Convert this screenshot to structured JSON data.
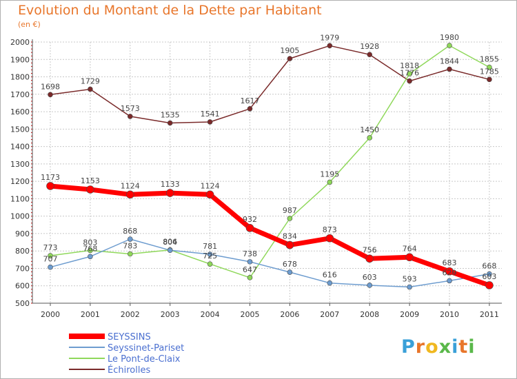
{
  "title": "Evolution du Montant de la Dette par Habitant",
  "unit": "(en €)",
  "logo": "Proxiti",
  "colors": {
    "title": "#e8762b",
    "grid": "#c8c8c8",
    "axis": "#555555",
    "tick_red": "#cc0000"
  },
  "chart_data": {
    "type": "line",
    "title": "Evolution du Montant de la Dette par Habitant",
    "ylabel": "(en €)",
    "xlabel": "",
    "x": [
      "2000",
      "2001",
      "2002",
      "2003",
      "2004",
      "2005",
      "2006",
      "2007",
      "2008",
      "2009",
      "2010",
      "2011"
    ],
    "yticks": [
      "500",
      "600",
      "700",
      "800",
      "900",
      "1000",
      "1100",
      "1200",
      "1300",
      "1400",
      "1500",
      "1600",
      "1700",
      "1800",
      "1900",
      "2000"
    ],
    "ylim": [
      500,
      2000
    ],
    "grid": true,
    "legend_position": "bottom-left",
    "series": [
      {
        "name": "SEYSSINS",
        "color": "#ff0000",
        "legend_text_color": "#4a6fd0",
        "width": 7,
        "marker_r": 5.5,
        "values": [
          1173,
          1153,
          1124,
          1133,
          1124,
          932,
          834,
          873,
          756,
          764,
          683,
          603
        ],
        "labels": [
          "1173",
          "1153",
          "1124",
          "1133",
          "1124",
          "932",
          "834",
          "873",
          "756",
          "764",
          "683",
          "603"
        ]
      },
      {
        "name": "Seyssinet-Pariset",
        "color": "#6d9ccf",
        "legend_text_color": "#4a6fd0",
        "width": 1.5,
        "marker_r": 3.5,
        "values": [
          707,
          768,
          868,
          804,
          781,
          738,
          678,
          616,
          603,
          593,
          629,
          668
        ],
        "labels": [
          "707",
          "768",
          "868",
          "804",
          "781",
          "738",
          "678",
          "616",
          "603",
          "593",
          "629",
          "668"
        ]
      },
      {
        "name": "Le Pont-de-Claix",
        "color": "#8fd85a",
        "legend_text_color": "#4a6fd0",
        "width": 1.5,
        "marker_r": 3.5,
        "values": [
          773,
          803,
          783,
          806,
          725,
          647,
          987,
          1195,
          1450,
          1818,
          1980,
          1855
        ],
        "labels": [
          "773",
          "803",
          "783",
          "806",
          "725",
          "647",
          "987",
          "1195",
          "1450",
          "1818",
          "1980",
          "1855"
        ]
      },
      {
        "name": "Échirolles",
        "color": "#7a2a2a",
        "legend_text_color": "#4a6fd0",
        "width": 1.5,
        "marker_r": 3.5,
        "values": [
          1698,
          1729,
          1573,
          1535,
          1541,
          1617,
          1905,
          1979,
          1928,
          1776,
          1844,
          1785
        ],
        "labels": [
          "1698",
          "1729",
          "1573",
          "1535",
          "1541",
          "1617",
          "1905",
          "1979",
          "1928",
          "1776",
          "1844",
          "1785"
        ]
      }
    ]
  }
}
